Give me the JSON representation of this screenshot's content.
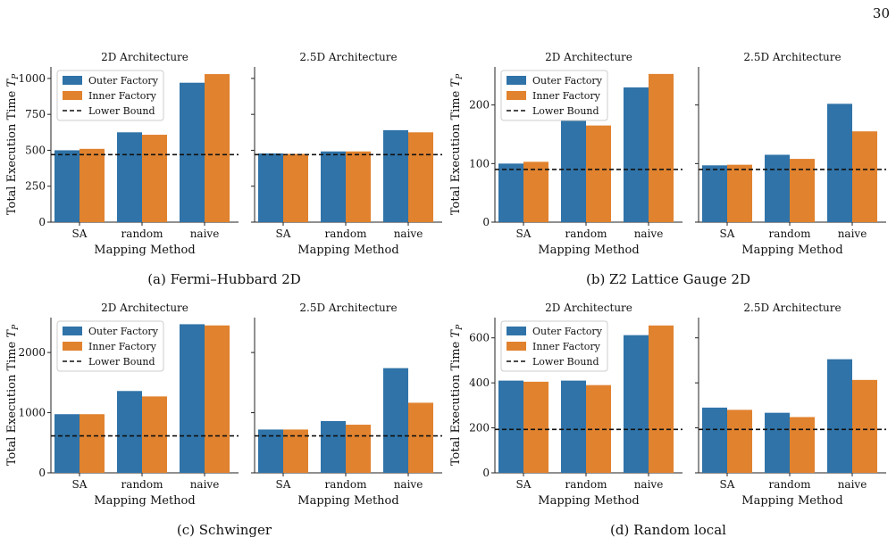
{
  "page_number": "30",
  "legend_labels": [
    "Outer Factory",
    "Inner Factory",
    "Lower Bound"
  ],
  "colors": {
    "outer": "#2f73a8",
    "inner": "#e1822e",
    "bound": "#111111"
  },
  "chart_data": [
    {
      "type": "bar",
      "caption": "(a) Fermi–Hubbard 2D",
      "ylabel": "Total Execution Time T_P",
      "xlabel": "Mapping Method",
      "categories": [
        "SA",
        "random",
        "naive"
      ],
      "ylim": [
        0,
        1080
      ],
      "yticks": [
        0,
        250,
        500,
        750,
        1000
      ],
      "panels": [
        {
          "title": "2D Architecture",
          "legend": true,
          "series": [
            {
              "name": "Outer Factory",
              "values": [
                500,
                625,
                970
              ]
            },
            {
              "name": "Inner Factory",
              "values": [
                510,
                608,
                1030
              ]
            }
          ],
          "lower_bound": 470
        },
        {
          "title": "2.5D Architecture",
          "legend": false,
          "series": [
            {
              "name": "Outer Factory",
              "values": [
                478,
                492,
                640
              ]
            },
            {
              "name": "Inner Factory",
              "values": [
                475,
                492,
                625
              ]
            }
          ],
          "lower_bound": 470
        }
      ]
    },
    {
      "type": "bar",
      "caption": "(b) Z2 Lattice Gauge 2D",
      "ylabel": "Total Execution Time T_P",
      "xlabel": "Mapping Method",
      "categories": [
        "SA",
        "random",
        "naive"
      ],
      "ylim": [
        0,
        265
      ],
      "yticks": [
        0,
        100,
        200
      ],
      "panels": [
        {
          "title": "2D Architecture",
          "legend": true,
          "series": [
            {
              "name": "Outer Factory",
              "values": [
                100,
                175,
                230
              ]
            },
            {
              "name": "Inner Factory",
              "values": [
                103,
                165,
                253
              ]
            }
          ],
          "lower_bound": 90
        },
        {
          "title": "2.5D Architecture",
          "legend": false,
          "series": [
            {
              "name": "Outer Factory",
              "values": [
                97,
                115,
                202
              ]
            },
            {
              "name": "Inner Factory",
              "values": [
                98,
                108,
                155
              ]
            }
          ],
          "lower_bound": 90
        }
      ]
    },
    {
      "type": "bar",
      "caption": "(c) Schwinger",
      "ylabel": "Total Execution Time T_P",
      "xlabel": "Mapping Method",
      "categories": [
        "SA",
        "random",
        "naive"
      ],
      "ylim": [
        0,
        2580
      ],
      "yticks": [
        0,
        1000,
        2000
      ],
      "panels": [
        {
          "title": "2D Architecture",
          "legend": true,
          "series": [
            {
              "name": "Outer Factory",
              "values": [
                975,
                1360,
                2470
              ]
            },
            {
              "name": "Inner Factory",
              "values": [
                975,
                1270,
                2450
              ]
            }
          ],
          "lower_bound": 615
        },
        {
          "title": "2.5D Architecture",
          "legend": false,
          "series": [
            {
              "name": "Outer Factory",
              "values": [
                720,
                860,
                1740
              ]
            },
            {
              "name": "Inner Factory",
              "values": [
                720,
                800,
                1165
              ]
            }
          ],
          "lower_bound": 615
        }
      ]
    },
    {
      "type": "bar",
      "caption": "(d) Random local",
      "ylabel": "Total Execution Time T_P",
      "xlabel": "Mapping Method",
      "categories": [
        "SA",
        "random",
        "naive"
      ],
      "ylim": [
        0,
        690
      ],
      "yticks": [
        0,
        200,
        400,
        600
      ],
      "panels": [
        {
          "title": "2D Architecture",
          "legend": true,
          "series": [
            {
              "name": "Outer Factory",
              "values": [
                410,
                410,
                612
              ]
            },
            {
              "name": "Inner Factory",
              "values": [
                405,
                390,
                655
              ]
            }
          ],
          "lower_bound": 193
        },
        {
          "title": "2.5D Architecture",
          "legend": false,
          "series": [
            {
              "name": "Outer Factory",
              "values": [
                290,
                267,
                505
              ]
            },
            {
              "name": "Inner Factory",
              "values": [
                280,
                248,
                413
              ]
            }
          ],
          "lower_bound": 193
        }
      ]
    }
  ]
}
